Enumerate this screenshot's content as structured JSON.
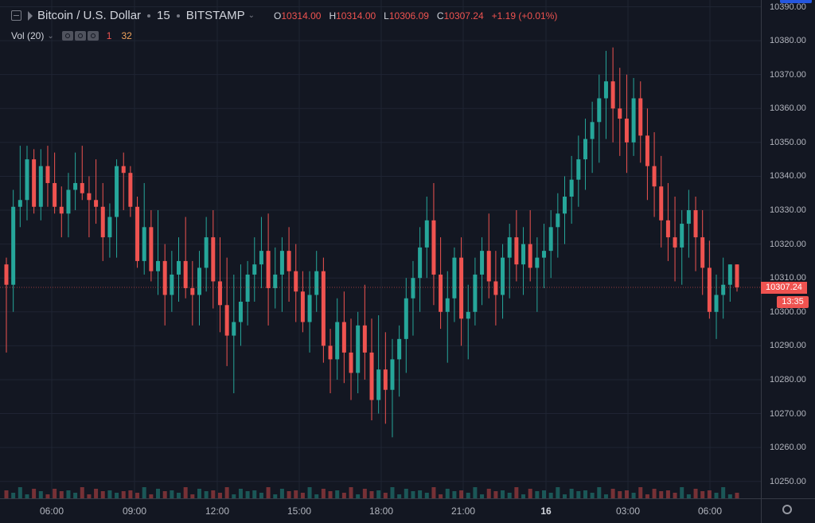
{
  "header": {
    "symbol": "Bitcoin / U.S. Dollar",
    "interval": "15",
    "exchange": "BITSTAMP",
    "ohlc": {
      "o_label": "O",
      "o": "10314.00",
      "h_label": "H",
      "h": "10314.00",
      "l_label": "L",
      "l": "10306.09",
      "c_label": "C",
      "c": "10307.24",
      "change": "+1.19 (+0.01%)"
    }
  },
  "volume_indicator": {
    "label": "Vol (20)",
    "value1": "1",
    "value2": "32"
  },
  "price_axis": {
    "labels": [
      "10390.00",
      "10380.00",
      "10370.00",
      "10360.00",
      "10350.00",
      "10340.00",
      "10330.00",
      "10320.00",
      "10310.00",
      "10300.00",
      "10290.00",
      "10280.00",
      "10270.00",
      "10260.00",
      "10250.00"
    ],
    "last_price": "10307.24",
    "countdown": "13:35"
  },
  "time_axis": {
    "labels": [
      "06:00",
      "09:00",
      "12:00",
      "15:00",
      "18:00",
      "21:00",
      "16",
      "03:00",
      "06:00"
    ],
    "bold_label": "16"
  },
  "colors": {
    "up": "#26a69a",
    "down": "#ef5350",
    "background": "#131722",
    "grid": "#1f2433",
    "text": "#b2b5be",
    "accent": "#2962ff"
  },
  "chart_data": {
    "type": "candlestick",
    "x_labels": [
      "06:00",
      "09:00",
      "12:00",
      "15:00",
      "18:00",
      "21:00",
      "16",
      "03:00",
      "06:00"
    ],
    "y_range": [
      10245,
      10392
    ],
    "last_price": 10307.24,
    "candles": [
      [
        10314,
        10316,
        10288,
        10308,
        2
      ],
      [
        10308,
        10336,
        10300,
        10331,
        1
      ],
      [
        10331,
        10349,
        10325,
        10333,
        2
      ],
      [
        10333,
        10349,
        10327,
        10345,
        1
      ],
      [
        10345,
        10348,
        10329,
        10331,
        2
      ],
      [
        10331,
        10348,
        10327,
        10343,
        1
      ],
      [
        10343,
        10349,
        10331,
        10338,
        1
      ],
      [
        10338,
        10347,
        10329,
        10331,
        2
      ],
      [
        10331,
        10337,
        10322,
        10329,
        1
      ],
      [
        10329,
        10341,
        10322,
        10336,
        2
      ],
      [
        10336,
        10347,
        10330,
        10338,
        1
      ],
      [
        10338,
        10349,
        10333,
        10335,
        2
      ],
      [
        10335,
        10340,
        10322,
        10333,
        1
      ],
      [
        10333,
        10345,
        10326,
        10331,
        2
      ],
      [
        10331,
        10338,
        10315,
        10322,
        1
      ],
      [
        10322,
        10332,
        10316,
        10328,
        2
      ],
      [
        10328,
        10345,
        10316,
        10343,
        1
      ],
      [
        10343,
        10347,
        10330,
        10341,
        1
      ],
      [
        10341,
        10343,
        10328,
        10331,
        2
      ],
      [
        10331,
        10334,
        10313,
        10315,
        1
      ],
      [
        10315,
        10338,
        10311,
        10325,
        2
      ],
      [
        10325,
        10330,
        10309,
        10312,
        1
      ],
      [
        10312,
        10330,
        10305,
        10315,
        2
      ],
      [
        10315,
        10320,
        10296,
        10305,
        1
      ],
      [
        10305,
        10318,
        10300,
        10311,
        2
      ],
      [
        10311,
        10322,
        10303,
        10315,
        1
      ],
      [
        10315,
        10328,
        10304,
        10307,
        2
      ],
      [
        10307,
        10315,
        10296,
        10305,
        1
      ],
      [
        10305,
        10318,
        10296,
        10313,
        2
      ],
      [
        10313,
        10328,
        10306,
        10322,
        1
      ],
      [
        10322,
        10330,
        10301,
        10309,
        2
      ],
      [
        10309,
        10322,
        10294,
        10302,
        1
      ],
      [
        10302,
        10316,
        10284,
        10293,
        2
      ],
      [
        10293,
        10311,
        10276,
        10297,
        1
      ],
      [
        10297,
        10314,
        10290,
        10303,
        2
      ],
      [
        10303,
        10315,
        10296,
        10311,
        1
      ],
      [
        10311,
        10322,
        10303,
        10314,
        2
      ],
      [
        10314,
        10328,
        10307,
        10318,
        1
      ],
      [
        10318,
        10329,
        10296,
        10307,
        2
      ],
      [
        10307,
        10319,
        10301,
        10311,
        1
      ],
      [
        10311,
        10322,
        10300,
        10318,
        2
      ],
      [
        10318,
        10325,
        10303,
        10312,
        1
      ],
      [
        10312,
        10320,
        10297,
        10306,
        2
      ],
      [
        10306,
        10312,
        10294,
        10297,
        1
      ],
      [
        10297,
        10312,
        10288,
        10305,
        2
      ],
      [
        10305,
        10318,
        10300,
        10312,
        1
      ],
      [
        10312,
        10316,
        10285,
        10290,
        2
      ],
      [
        10290,
        10295,
        10276,
        10286,
        1
      ],
      [
        10286,
        10304,
        10280,
        10297,
        2
      ],
      [
        10297,
        10306,
        10279,
        10288,
        1
      ],
      [
        10288,
        10298,
        10274,
        10282,
        2
      ],
      [
        10282,
        10300,
        10276,
        10296,
        1
      ],
      [
        10296,
        10308,
        10280,
        10288,
        2
      ],
      [
        10288,
        10298,
        10268,
        10274,
        1
      ],
      [
        10274,
        10299,
        10270,
        10283,
        2
      ],
      [
        10283,
        10294,
        10267,
        10277,
        1
      ],
      [
        10277,
        10292,
        10263,
        10286,
        2
      ],
      [
        10286,
        10296,
        10275,
        10292,
        1
      ],
      [
        10292,
        10310,
        10282,
        10304,
        2
      ],
      [
        10304,
        10315,
        10293,
        10310,
        1
      ],
      [
        10310,
        10325,
        10300,
        10319,
        2
      ],
      [
        10319,
        10334,
        10310,
        10327,
        1
      ],
      [
        10327,
        10338,
        10302,
        10311,
        2
      ],
      [
        10311,
        10322,
        10295,
        10300,
        1
      ],
      [
        10300,
        10312,
        10285,
        10304,
        2
      ],
      [
        10304,
        10319,
        10297,
        10316,
        1
      ],
      [
        10316,
        10322,
        10290,
        10298,
        2
      ],
      [
        10298,
        10308,
        10286,
        10300,
        1
      ],
      [
        10300,
        10316,
        10296,
        10311,
        2
      ],
      [
        10311,
        10322,
        10302,
        10318,
        1
      ],
      [
        10318,
        10329,
        10304,
        10309,
        2
      ],
      [
        10309,
        10318,
        10296,
        10305,
        1
      ],
      [
        10305,
        10320,
        10298,
        10316,
        2
      ],
      [
        10316,
        10326,
        10304,
        10322,
        1
      ],
      [
        10322,
        10330,
        10309,
        10314,
        2
      ],
      [
        10314,
        10325,
        10305,
        10320,
        1
      ],
      [
        10320,
        10330,
        10309,
        10313,
        2
      ],
      [
        10313,
        10322,
        10300,
        10316,
        1
      ],
      [
        10316,
        10326,
        10307,
        10318,
        2
      ],
      [
        10318,
        10330,
        10310,
        10325,
        1
      ],
      [
        10325,
        10335,
        10316,
        10329,
        2
      ],
      [
        10329,
        10340,
        10320,
        10334,
        1
      ],
      [
        10334,
        10346,
        10326,
        10339,
        2
      ],
      [
        10339,
        10352,
        10331,
        10345,
        1
      ],
      [
        10345,
        10357,
        10336,
        10351,
        2
      ],
      [
        10351,
        10362,
        10341,
        10356,
        1
      ],
      [
        10356,
        10370,
        10344,
        10363,
        2
      ],
      [
        10363,
        10377,
        10351,
        10368,
        1
      ],
      [
        10368,
        10378,
        10350,
        10360,
        2
      ],
      [
        10360,
        10372,
        10346,
        10357,
        1
      ],
      [
        10357,
        10370,
        10341,
        10350,
        2
      ],
      [
        10350,
        10369,
        10346,
        10363,
        1
      ],
      [
        10363,
        10368,
        10344,
        10352,
        2
      ],
      [
        10352,
        10360,
        10333,
        10343,
        1
      ],
      [
        10343,
        10353,
        10328,
        10337,
        2
      ],
      [
        10337,
        10346,
        10319,
        10327,
        1
      ],
      [
        10327,
        10338,
        10315,
        10322,
        2
      ],
      [
        10322,
        10334,
        10309,
        10319,
        1
      ],
      [
        10319,
        10330,
        10308,
        10326,
        2
      ],
      [
        10326,
        10336,
        10316,
        10330,
        1
      ],
      [
        10330,
        10334,
        10312,
        10322,
        2
      ],
      [
        10322,
        10330,
        10305,
        10313,
        1
      ],
      [
        10313,
        10321,
        10298,
        10300,
        2
      ],
      [
        10300,
        10311,
        10292,
        10305,
        1
      ],
      [
        10305,
        10316,
        10298,
        10308,
        2
      ],
      [
        10308,
        10314,
        10303,
        10314,
        1
      ],
      [
        10314,
        10314,
        10306,
        10307.24,
        1
      ]
    ]
  }
}
